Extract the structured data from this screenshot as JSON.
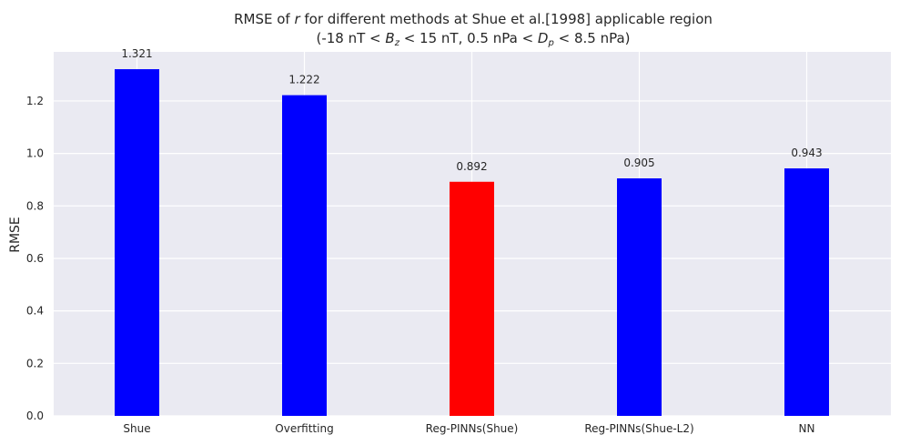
{
  "chart_data": {
    "type": "bar",
    "title_line1_prefix": "RMSE of ",
    "title_line1_var": "r",
    "title_line1_suffix": " for different methods at Shue et al.[1998] applicable region",
    "title_line2_a": "(-18 nT < ",
    "title_line2_b_var": "B",
    "title_line2_b_sub": "z",
    "title_line2_c": " < 15 nT, 0.5 nPa < ",
    "title_line2_d_var": "D",
    "title_line2_d_sub": "p",
    "title_line2_e": " < 8.5 nPa)",
    "xlabel": "",
    "ylabel": "RMSE",
    "categories": [
      "Shue",
      "Overfitting",
      "Reg-PINNs(Shue)",
      "Reg-PINNs(Shue-L2)",
      "NN"
    ],
    "values": [
      1.321,
      1.222,
      0.892,
      0.905,
      0.943
    ],
    "value_labels": [
      "1.321",
      "1.222",
      "0.892",
      "0.905",
      "0.943"
    ],
    "bar_colors": [
      "#0000ff",
      "#0000ff",
      "#ff0000",
      "#0000ff",
      "#0000ff"
    ],
    "yticks": [
      0.0,
      0.2,
      0.4,
      0.6,
      0.8,
      1.0,
      1.2
    ],
    "ytick_labels": [
      "0.0",
      "0.2",
      "0.4",
      "0.6",
      "0.8",
      "1.0",
      "1.2"
    ],
    "ylim": [
      0,
      1.387
    ],
    "grid": true,
    "background": "#eaeaf2",
    "grid_color": "#ffffff"
  }
}
